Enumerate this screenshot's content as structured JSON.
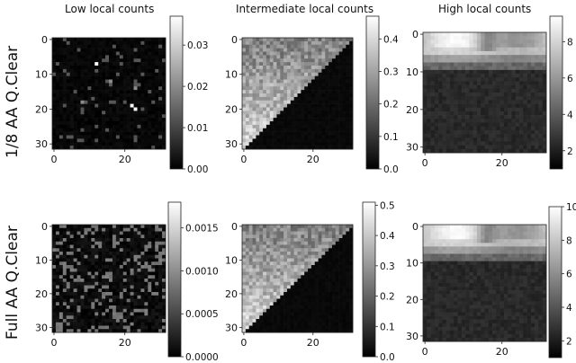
{
  "chart_data": {
    "type": "heatmap",
    "colormap": "grayscale",
    "column_titles": [
      "Low local counts",
      "Intermediate local counts",
      "High local counts"
    ],
    "row_labels": [
      "1/8 AA Q.Clear",
      "Full AA Q.Clear"
    ],
    "image_size": [
      32,
      32
    ],
    "panels": [
      {
        "row": 0,
        "col": 0,
        "column_title": "Low local counts",
        "x_ticks": [
          "0",
          "20"
        ],
        "y_ticks": [
          "0",
          "10",
          "20",
          "30"
        ],
        "colorbar_range": [
          0.0,
          0.037
        ],
        "colorbar_ticks": [
          "0.00",
          "0.01",
          "0.02",
          "0.03"
        ],
        "pattern": "sparse"
      },
      {
        "row": 0,
        "col": 1,
        "column_title": "Intermediate local counts",
        "x_ticks": [
          "0",
          "20"
        ],
        "y_ticks": [
          "0",
          "10",
          "20",
          "30"
        ],
        "colorbar_range": [
          0.0,
          0.47
        ],
        "colorbar_ticks": [
          "0.0",
          "0.1",
          "0.2",
          "0.3",
          "0.4"
        ],
        "pattern": "triangle"
      },
      {
        "row": 0,
        "col": 2,
        "column_title": "High local counts",
        "x_ticks": [
          "0",
          "20"
        ],
        "y_ticks": [
          "0",
          "10",
          "20",
          "30"
        ],
        "colorbar_range": [
          1.0,
          9.4
        ],
        "colorbar_ticks": [
          "2",
          "4",
          "6",
          "8"
        ],
        "pattern": "top_band"
      },
      {
        "row": 1,
        "col": 0,
        "column_title": "Low local counts",
        "x_ticks": [
          "0",
          "20"
        ],
        "y_ticks": [
          "0",
          "10",
          "20",
          "30"
        ],
        "colorbar_range": [
          0.0,
          0.0018
        ],
        "colorbar_ticks": [
          "0.0000",
          "0.0005",
          "0.0010",
          "0.0015"
        ],
        "pattern": "sparse_faint"
      },
      {
        "row": 1,
        "col": 1,
        "column_title": "Intermediate local counts",
        "x_ticks": [
          "0",
          "20"
        ],
        "y_ticks": [
          "0",
          "10",
          "20",
          "30"
        ],
        "colorbar_range": [
          0.0,
          0.51
        ],
        "colorbar_ticks": [
          "0.0",
          "0.1",
          "0.2",
          "0.3",
          "0.4",
          "0.5"
        ],
        "pattern": "triangle"
      },
      {
        "row": 1,
        "col": 2,
        "column_title": "High local counts",
        "x_ticks": [
          "0",
          "20"
        ],
        "y_ticks": [
          "0",
          "10",
          "20",
          "30"
        ],
        "colorbar_range": [
          1.0,
          10.0
        ],
        "colorbar_ticks": [
          "2",
          "4",
          "6",
          "8",
          "10"
        ],
        "pattern": "top_band"
      }
    ]
  }
}
